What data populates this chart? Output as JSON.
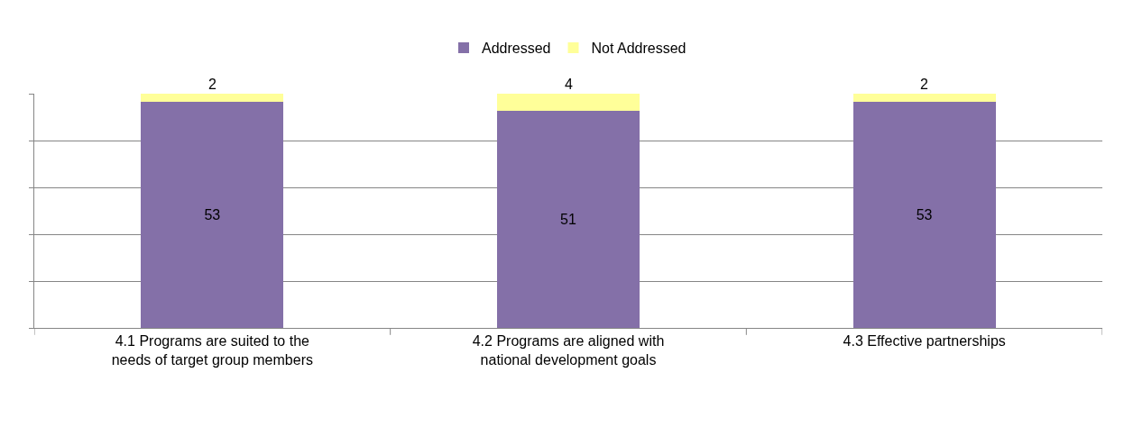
{
  "chart_data": {
    "type": "bar",
    "stacked": true,
    "categories": [
      "4.1 Programs are suited to the needs of target group members",
      "4.2 Programs are aligned with national development goals",
      "4.3 Effective partnerships"
    ],
    "series": [
      {
        "name": "Addressed",
        "color": "#8470a8",
        "values": [
          53,
          51,
          53
        ]
      },
      {
        "name": "Not Addressed",
        "color": "#ffff99",
        "values": [
          2,
          4,
          2
        ]
      }
    ],
    "ylim": [
      0,
      55
    ],
    "yticks": [
      {
        "value": 0,
        "label": null
      },
      {
        "value": 11,
        "label": null
      },
      {
        "value": 22,
        "label": null
      },
      {
        "value": 33,
        "label": null
      },
      {
        "value": 44,
        "label": null
      },
      {
        "value": 55,
        "label": null
      }
    ],
    "tick_labels": "x",
    "grid": "y",
    "legend": "top",
    "data_labels": true
  }
}
